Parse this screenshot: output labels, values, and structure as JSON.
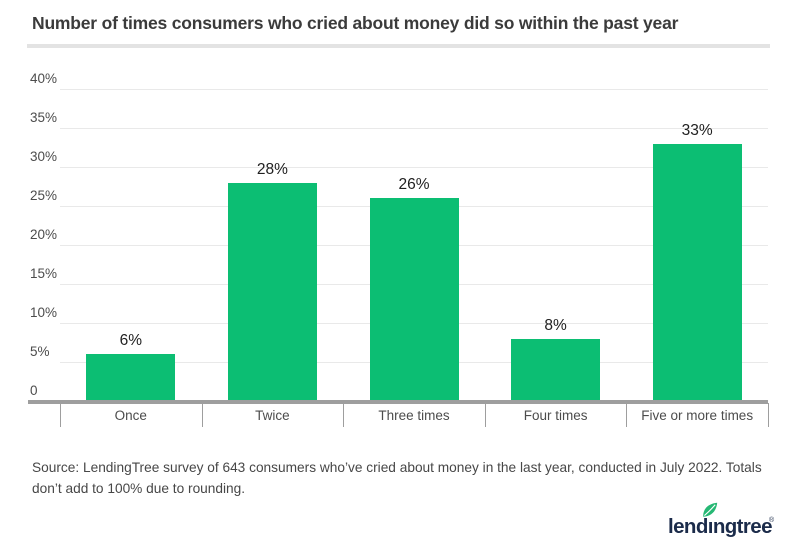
{
  "chart_data": {
    "type": "bar",
    "title": "Number of times consumers who cried about money did so within the past year",
    "categories": [
      "Once",
      "Twice",
      "Three times",
      "Four times",
      "Five or more times"
    ],
    "values": [
      6,
      28,
      26,
      8,
      33
    ],
    "value_labels": [
      "6%",
      "28%",
      "26%",
      "8%",
      "33%"
    ],
    "xlabel": "",
    "ylabel": "",
    "ylim": [
      0,
      40
    ],
    "ytick_step": 5,
    "ytick_labels": [
      "0",
      "5%",
      "10%",
      "15%",
      "20%",
      "25%",
      "30%",
      "35%",
      "40%"
    ],
    "grid": true,
    "legend": "none",
    "bar_color": "#0cbe73"
  },
  "colors": {
    "title_text": "#3b3b3b",
    "divider": "#e3e3e3",
    "gridline": "#e9e9e9",
    "axis_line": "#9e9e9e",
    "axis_label_text": "#4c4c4c",
    "value_label_text": "#212121",
    "source_text": "#474747",
    "logo_navy": "#1b2b4a",
    "logo_leaf_green": "#26b874"
  },
  "footer": {
    "source_text": "Source: LendingTree survey of 643 consumers who’ve cried about money in the last year, conducted in July 2022. Totals don’t add to 100% due to rounding.",
    "logo": {
      "wordmark": "lendıngtree",
      "brand_name": "lendingtree",
      "registered_mark": "®",
      "leaf_icon": "leaf-icon"
    }
  }
}
